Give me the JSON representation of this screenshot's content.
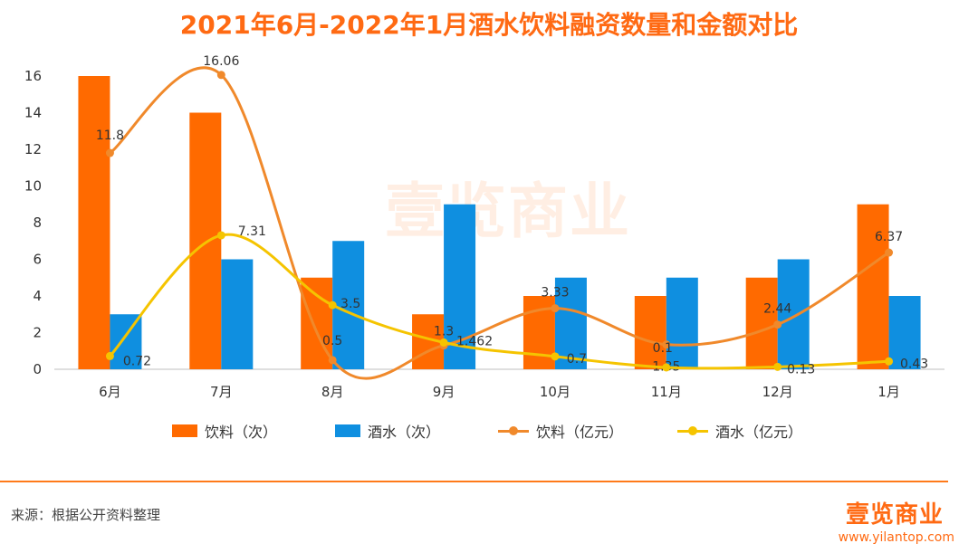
{
  "title": "2021年6月-2022年1月酒水饮料融资数量和金额对比",
  "source": "来源：根据公开资料整理",
  "brand": {
    "logo": "壹览商业",
    "url": "www.yilantop.com"
  },
  "watermark": "壹览商业",
  "colors": {
    "drink_bar": "#ff6a00",
    "liquor_bar": "#0f8fe0",
    "drink_line": "#f0892b",
    "liquor_line": "#f5c400",
    "accent": "#ff6a13"
  },
  "chart_data": {
    "type": "bar",
    "title": "2021年6月-2022年1月酒水饮料融资数量和金额对比",
    "categories": [
      "6月",
      "7月",
      "8月",
      "9月",
      "10月",
      "11月",
      "12月",
      "1月"
    ],
    "ylim": [
      0,
      16
    ],
    "yticks": [
      0,
      2,
      4,
      6,
      8,
      10,
      12,
      14,
      16
    ],
    "grid": false,
    "legend_position": "bottom",
    "series": [
      {
        "name": "饮料（次）",
        "type": "bar",
        "values": [
          16,
          14,
          5,
          3,
          4,
          4,
          5,
          9
        ]
      },
      {
        "name": "酒水（次）",
        "type": "bar",
        "values": [
          3,
          6,
          7,
          9,
          5,
          5,
          6,
          4
        ]
      },
      {
        "name": "饮料（亿元）",
        "type": "line",
        "values": [
          11.8,
          16.06,
          0.5,
          1.3,
          3.33,
          1.35,
          2.44,
          6.37
        ],
        "labels": [
          "11.8",
          "16.06",
          "0.5",
          "1.3",
          "3.33",
          "1.35",
          "2.44",
          "6.37"
        ]
      },
      {
        "name": "酒水（亿元）",
        "type": "line",
        "values": [
          0.72,
          7.31,
          3.5,
          1.462,
          0.7,
          0.1,
          0.13,
          0.43
        ],
        "labels": [
          "0.72",
          "7.31",
          "3.5",
          "1.462",
          "0.7",
          "0.1",
          "0.13",
          "0.43"
        ]
      }
    ]
  }
}
